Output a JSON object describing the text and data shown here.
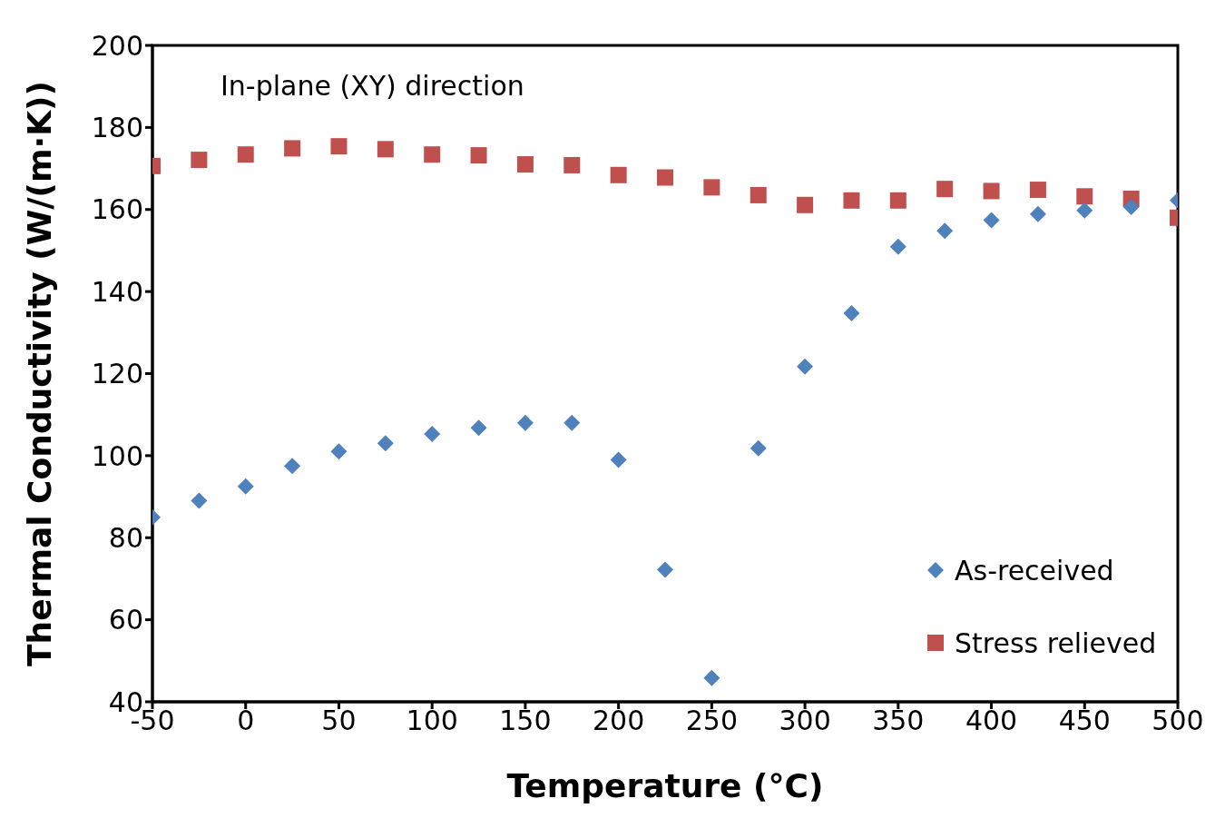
{
  "chart_data": {
    "type": "scatter",
    "xlabel": "Temperature (°C)",
    "ylabel": "Thermal Conductivity  (W/(m·K))",
    "annotations": [
      "In-plane (XY) direction"
    ],
    "x": [
      -50,
      -25,
      0,
      25,
      50,
      75,
      100,
      125,
      150,
      175,
      200,
      225,
      250,
      275,
      300,
      325,
      350,
      375,
      400,
      425,
      450,
      475,
      500
    ],
    "series": [
      {
        "name": "As-received",
        "color": "#4f81bd",
        "marker": "diamond",
        "values": [
          85,
          89,
          92.5,
          97.5,
          101,
          103,
          105.3,
          106.8,
          108,
          108,
          99,
          72.2,
          45.8,
          101.8,
          121.7,
          134.7,
          150.9,
          154.8,
          157.4,
          158.9,
          159.8,
          160.6,
          162.2
        ]
      },
      {
        "name": "Stress relieved",
        "color": "#c0504d",
        "marker": "square",
        "values": [
          170.6,
          172.1,
          173.4,
          174.9,
          175.4,
          174.7,
          173.4,
          173.2,
          171,
          170.8,
          168.4,
          167.8,
          165.4,
          163.5,
          161.1,
          162.2,
          162.2,
          165,
          164.5,
          164.8,
          163.2,
          162.6,
          158
        ]
      }
    ],
    "xlim": [
      -50,
      500
    ],
    "xticks": [
      -50,
      0,
      50,
      100,
      150,
      200,
      250,
      300,
      350,
      400,
      450,
      500
    ],
    "ylim": [
      40,
      200
    ],
    "yticks": [
      40,
      60,
      80,
      100,
      120,
      140,
      160,
      180,
      200
    ],
    "grid": false,
    "legend": "bottom right"
  }
}
